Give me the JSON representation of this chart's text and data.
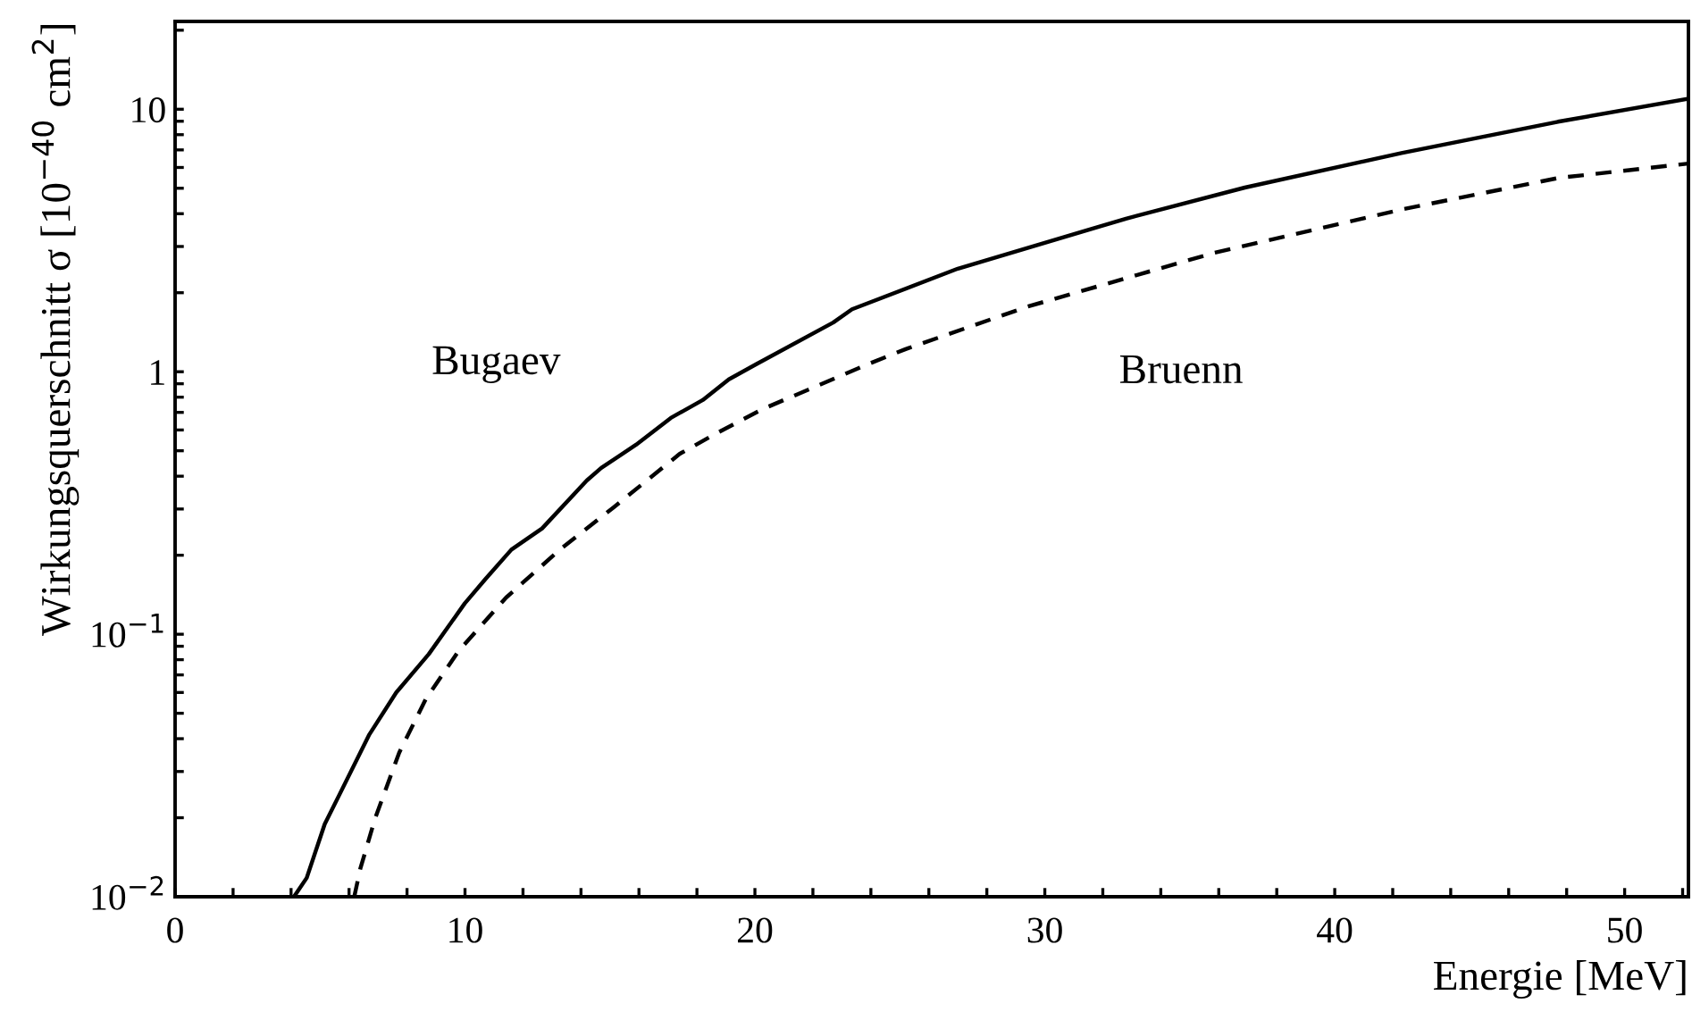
{
  "chart_data": {
    "type": "line",
    "xlabel": "Energie [MeV]",
    "ylabel": "Wirkungsquerschnitt σ [10$^{−40}$ cm$^{2}$]",
    "log": "y",
    "xlim": [
      0,
      52.2
    ],
    "ylim": [
      0.01,
      21.6
    ],
    "xticks": [
      0,
      {
        "value": 2,
        "label": null
      },
      {
        "value": 4,
        "label": null
      },
      {
        "value": 6,
        "label": null
      },
      {
        "value": 8,
        "label": null
      },
      10,
      {
        "value": 12,
        "label": null
      },
      {
        "value": 14,
        "label": null
      },
      {
        "value": 16,
        "label": null
      },
      {
        "value": 18,
        "label": null
      },
      20,
      {
        "value": 22,
        "label": null
      },
      {
        "value": 24,
        "label": null
      },
      {
        "value": 26,
        "label": null
      },
      {
        "value": 28,
        "label": null
      },
      30,
      {
        "value": 32,
        "label": null
      },
      {
        "value": 34,
        "label": null
      },
      {
        "value": 36,
        "label": null
      },
      {
        "value": 38,
        "label": null
      },
      40,
      {
        "value": 42,
        "label": null
      },
      {
        "value": 44,
        "label": null
      },
      {
        "value": 46,
        "label": null
      },
      {
        "value": 48,
        "label": null
      },
      50,
      {
        "value": 52,
        "label": null
      }
    ],
    "yticks": [
      {
        "value": 0.01,
        "label": "10$^{−2}$"
      },
      {
        "value": 0.02,
        "label": null
      },
      {
        "value": 0.03,
        "label": null
      },
      {
        "value": 0.04,
        "label": null
      },
      {
        "value": 0.05,
        "label": null
      },
      {
        "value": 0.06,
        "label": null
      },
      {
        "value": 0.07,
        "label": null
      },
      {
        "value": 0.08,
        "label": null
      },
      {
        "value": 0.09,
        "label": null
      },
      {
        "value": 0.1,
        "label": "10$^{−1}$"
      },
      {
        "value": 0.2,
        "label": null
      },
      {
        "value": 0.3,
        "label": null
      },
      {
        "value": 0.4,
        "label": null
      },
      {
        "value": 0.5,
        "label": null
      },
      {
        "value": 0.6,
        "label": null
      },
      {
        "value": 0.7,
        "label": null
      },
      {
        "value": 0.8,
        "label": null
      },
      {
        "value": 0.9,
        "label": null
      },
      1,
      {
        "value": 2,
        "label": null
      },
      {
        "value": 3,
        "label": null
      },
      {
        "value": 4,
        "label": null
      },
      {
        "value": 5,
        "label": null
      },
      {
        "value": 6,
        "label": null
      },
      {
        "value": 7,
        "label": null
      },
      {
        "value": 8,
        "label": null
      },
      {
        "value": 9,
        "label": null
      },
      10,
      {
        "value": 20,
        "label": null
      }
    ],
    "grid": false,
    "legend": false,
    "series": [
      {
        "name": "Bugaev",
        "color": "#000000",
        "line_style": "solid",
        "x": [
          4.1,
          4.54,
          5.16,
          5.67,
          6.7,
          7.63,
          8.75,
          9.99,
          10.7,
          11.6,
          12.66,
          14.2,
          14.7,
          15.9,
          17.1,
          18.2,
          19.1,
          20.06,
          22.7,
          23.35,
          27.0,
          32.8,
          36.9,
          42.3,
          47.7,
          52.2
        ],
        "values": [
          0.01,
          0.0118,
          0.0189,
          0.0245,
          0.0415,
          0.06,
          0.084,
          0.131,
          0.162,
          0.21,
          0.253,
          0.385,
          0.43,
          0.527,
          0.667,
          0.78,
          0.935,
          1.07,
          1.54,
          1.73,
          2.47,
          3.83,
          5.03,
          6.81,
          8.96,
          10.97
        ]
      },
      {
        "name": "Bruenn",
        "color": "#000000",
        "line_style": "dashed",
        "x": [
          6.18,
          6.39,
          6.9,
          7.73,
          8.65,
          9.78,
          11.42,
          13.27,
          15.12,
          17.4,
          18.6,
          20.26,
          24.0,
          25.2,
          29.4,
          35.8,
          42.3,
          47.7,
          52.2
        ],
        "values": [
          0.01,
          0.0128,
          0.0199,
          0.0354,
          0.0567,
          0.0863,
          0.138,
          0.21,
          0.304,
          0.486,
          0.577,
          0.72,
          1.08,
          1.22,
          1.77,
          2.83,
          4.15,
          5.47,
          6.21
        ]
      }
    ]
  }
}
